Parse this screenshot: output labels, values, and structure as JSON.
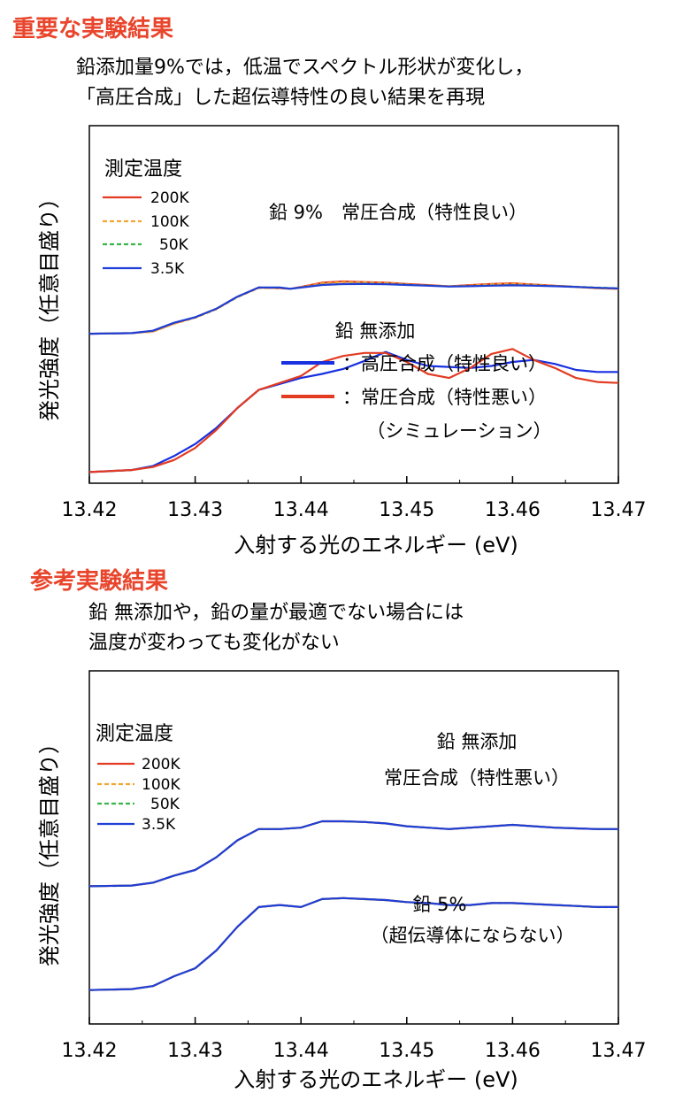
{
  "sections": [
    {
      "heading": "重要な実験結果",
      "caption_lines": [
        "鉛添加量9%では，低温でスペクトル形状が変化し，",
        "「高圧合成」した超伝導特性の良い結果を再現"
      ]
    },
    {
      "heading": "参考実験結果",
      "caption_lines": [
        "鉛 無添加や，鉛の量が最適でない場合には",
        "温度が変わっても変化がない"
      ]
    }
  ],
  "colors": {
    "200K": "#e23b22",
    "100K": "#f2a531",
    "50K": "#3bb44a",
    "3.5K": "#1f3fd6",
    "high_pressure": "#1730e0",
    "ambient_pressure": "#e23b22",
    "heading": "#e8452c"
  },
  "chart_data": [
    {
      "type": "line",
      "xlabel": "入射する光のエネルギー (eV)",
      "ylabel": "発光強度（任意目盛り）",
      "xlim": [
        13.42,
        13.47
      ],
      "ylim": [
        0,
        1
      ],
      "xticks": [
        "13.42",
        "13.43",
        "13.44",
        "13.45",
        "13.46",
        "13.47"
      ],
      "legend": {
        "title": "測定温度",
        "position": "top-left",
        "entries": [
          "200K",
          "100K",
          "50K",
          "3.5K"
        ]
      },
      "annotations": [
        {
          "text": "鉛 9%　常圧合成（特性良い）",
          "target": "upper-curves"
        },
        {
          "text": "鉛 無添加",
          "target": "lower-curves"
        },
        {
          "text": "：高圧合成（特性良い）",
          "swatch": "high_pressure"
        },
        {
          "text": "：常圧合成（特性悪い）",
          "swatch": "ambient_pressure"
        },
        {
          "text": "（シミュレーション）",
          "target": "lower-curves"
        }
      ],
      "series": [
        {
          "name": "200K",
          "group": "鉛 9% 常圧合成",
          "style": "solid",
          "color": "200K",
          "x": [
            13.42,
            13.424,
            13.426,
            13.428,
            13.43,
            13.432,
            13.434,
            13.436,
            13.438,
            13.439,
            13.44,
            13.442,
            13.444,
            13.446,
            13.448,
            13.45,
            13.452,
            13.454,
            13.456,
            13.458,
            13.46,
            13.462,
            13.464,
            13.466,
            13.468,
            13.47
          ],
          "y": [
            0.465,
            0.47,
            0.485,
            0.55,
            0.6,
            0.67,
            0.77,
            0.845,
            0.84,
            0.835,
            0.85,
            0.885,
            0.895,
            0.89,
            0.885,
            0.875,
            0.865,
            0.855,
            0.865,
            0.875,
            0.88,
            0.87,
            0.86,
            0.85,
            0.84,
            0.835
          ]
        },
        {
          "name": "100K",
          "group": "鉛 9% 常圧合成",
          "style": "dashed",
          "color": "100K",
          "x": [
            13.42,
            13.424,
            13.426,
            13.428,
            13.43,
            13.432,
            13.434,
            13.436,
            13.438,
            13.439,
            13.44,
            13.442,
            13.444,
            13.446,
            13.448,
            13.45,
            13.452,
            13.454,
            13.456,
            13.458,
            13.46,
            13.462,
            13.464,
            13.466,
            13.468,
            13.47
          ],
          "y": [
            0.465,
            0.47,
            0.48,
            0.545,
            0.595,
            0.665,
            0.765,
            0.84,
            0.84,
            0.835,
            0.848,
            0.88,
            0.89,
            0.888,
            0.882,
            0.872,
            0.862,
            0.855,
            0.862,
            0.872,
            0.876,
            0.868,
            0.858,
            0.848,
            0.838,
            0.833
          ]
        },
        {
          "name": "50K",
          "group": "鉛 9% 常圧合成",
          "style": "dashed",
          "color": "50K",
          "x": [
            13.42,
            13.424,
            13.426,
            13.428,
            13.43,
            13.432,
            13.434,
            13.436,
            13.438,
            13.439,
            13.44,
            13.442,
            13.444,
            13.446,
            13.448,
            13.45,
            13.452,
            13.454,
            13.456,
            13.458,
            13.46,
            13.462,
            13.464,
            13.466,
            13.468,
            13.47
          ],
          "y": [
            0.465,
            0.47,
            0.49,
            0.555,
            0.6,
            0.67,
            0.77,
            0.845,
            0.845,
            0.835,
            0.845,
            0.868,
            0.875,
            0.876,
            0.874,
            0.868,
            0.862,
            0.855,
            0.858,
            0.862,
            0.865,
            0.862,
            0.858,
            0.852,
            0.845,
            0.84
          ]
        },
        {
          "name": "3.5K",
          "group": "鉛 9% 常圧合成",
          "style": "solid",
          "color": "3.5K",
          "x": [
            13.42,
            13.424,
            13.426,
            13.428,
            13.43,
            13.432,
            13.434,
            13.436,
            13.438,
            13.439,
            13.44,
            13.442,
            13.444,
            13.446,
            13.448,
            13.45,
            13.452,
            13.454,
            13.456,
            13.458,
            13.46,
            13.462,
            13.464,
            13.466,
            13.468,
            13.47
          ],
          "y": [
            0.465,
            0.47,
            0.49,
            0.555,
            0.6,
            0.67,
            0.77,
            0.845,
            0.845,
            0.835,
            0.845,
            0.866,
            0.873,
            0.874,
            0.872,
            0.866,
            0.86,
            0.853,
            0.856,
            0.86,
            0.863,
            0.86,
            0.856,
            0.85,
            0.843,
            0.838
          ]
        },
        {
          "name": "高圧合成（特性良い）",
          "group": "鉛 無添加",
          "style": "solid",
          "color": "high_pressure",
          "x": [
            13.42,
            13.424,
            13.426,
            13.428,
            13.43,
            13.432,
            13.434,
            13.436,
            13.438,
            13.44,
            13.442,
            13.444,
            13.446,
            13.448,
            13.45,
            13.452,
            13.454,
            13.456,
            13.458,
            13.46,
            13.462,
            13.464,
            13.466,
            13.468,
            13.47
          ],
          "y": [
            0.02,
            0.03,
            0.05,
            0.1,
            0.16,
            0.24,
            0.34,
            0.43,
            0.46,
            0.49,
            0.51,
            0.535,
            0.575,
            0.62,
            0.58,
            0.55,
            0.545,
            0.54,
            0.55,
            0.57,
            0.58,
            0.56,
            0.53,
            0.52,
            0.52
          ]
        },
        {
          "name": "常圧合成（特性悪い）",
          "group": "鉛 無添加",
          "style": "solid",
          "color": "ambient_pressure",
          "x": [
            13.42,
            13.424,
            13.426,
            13.428,
            13.43,
            13.432,
            13.434,
            13.436,
            13.438,
            13.44,
            13.442,
            13.444,
            13.446,
            13.448,
            13.45,
            13.452,
            13.454,
            13.456,
            13.458,
            13.46,
            13.462,
            13.464,
            13.466,
            13.468,
            13.47
          ],
          "y": [
            0.02,
            0.03,
            0.045,
            0.08,
            0.14,
            0.23,
            0.34,
            0.43,
            0.465,
            0.5,
            0.57,
            0.6,
            0.615,
            0.615,
            0.57,
            0.51,
            0.49,
            0.54,
            0.61,
            0.635,
            0.58,
            0.54,
            0.49,
            0.47,
            0.465
          ]
        }
      ]
    },
    {
      "type": "line",
      "xlabel": "入射する光のエネルギー (eV)",
      "ylabel": "発光強度（任意目盛り）",
      "xlim": [
        13.42,
        13.47
      ],
      "ylim": [
        0,
        1
      ],
      "xticks": [
        "13.42",
        "13.43",
        "13.44",
        "13.45",
        "13.46",
        "13.47"
      ],
      "legend": {
        "title": "測定温度",
        "position": "top-left",
        "entries": [
          "200K",
          "100K",
          "50K",
          "3.5K"
        ]
      },
      "annotations": [
        {
          "text": "鉛 無添加",
          "target": "upper-curves"
        },
        {
          "text": "常圧合成（特性悪い）",
          "target": "upper-curves"
        },
        {
          "text": "鉛 5%",
          "target": "lower-curves"
        },
        {
          "text": "（超伝導体にならない）",
          "target": "lower-curves"
        }
      ],
      "series": [
        {
          "name": "200K",
          "group": "鉛 無添加 常圧合成",
          "style": "solid",
          "color": "200K",
          "x": [
            13.42,
            13.424,
            13.426,
            13.428,
            13.43,
            13.432,
            13.434,
            13.436,
            13.438,
            13.44,
            13.442,
            13.444,
            13.446,
            13.448,
            13.45,
            13.452,
            13.454,
            13.456,
            13.458,
            13.46,
            13.462,
            13.464,
            13.466,
            13.468,
            13.47
          ],
          "y": [
            0.475,
            0.48,
            0.5,
            0.55,
            0.59,
            0.68,
            0.8,
            0.88,
            0.88,
            0.89,
            0.935,
            0.935,
            0.93,
            0.92,
            0.9,
            0.89,
            0.88,
            0.89,
            0.9,
            0.91,
            0.9,
            0.89,
            0.885,
            0.88,
            0.88
          ]
        },
        {
          "name": "100K",
          "group": "鉛 無添加 常圧合成",
          "style": "dashed",
          "color": "100K",
          "x": [
            13.42,
            13.424,
            13.426,
            13.428,
            13.43,
            13.432,
            13.434,
            13.436,
            13.438,
            13.44,
            13.442,
            13.444,
            13.446,
            13.448,
            13.45,
            13.452,
            13.454,
            13.456,
            13.458,
            13.46,
            13.462,
            13.464,
            13.466,
            13.468,
            13.47
          ],
          "y": [
            0.475,
            0.48,
            0.5,
            0.55,
            0.59,
            0.68,
            0.8,
            0.88,
            0.88,
            0.89,
            0.934,
            0.934,
            0.929,
            0.919,
            0.899,
            0.889,
            0.879,
            0.889,
            0.899,
            0.909,
            0.899,
            0.889,
            0.884,
            0.879,
            0.879
          ]
        },
        {
          "name": "50K",
          "group": "鉛 無添加 常圧合成",
          "style": "dashed",
          "color": "50K",
          "x": [
            13.42,
            13.424,
            13.426,
            13.428,
            13.43,
            13.432,
            13.434,
            13.436,
            13.438,
            13.44,
            13.442,
            13.444,
            13.446,
            13.448,
            13.45,
            13.452,
            13.454,
            13.456,
            13.458,
            13.46,
            13.462,
            13.464,
            13.466,
            13.468,
            13.47
          ],
          "y": [
            0.475,
            0.48,
            0.5,
            0.55,
            0.59,
            0.68,
            0.8,
            0.88,
            0.88,
            0.89,
            0.935,
            0.935,
            0.93,
            0.92,
            0.9,
            0.89,
            0.88,
            0.89,
            0.9,
            0.91,
            0.9,
            0.89,
            0.885,
            0.88,
            0.88
          ]
        },
        {
          "name": "3.5K",
          "group": "鉛 無添加 常圧合成",
          "style": "solid",
          "color": "3.5K",
          "x": [
            13.42,
            13.424,
            13.426,
            13.428,
            13.43,
            13.432,
            13.434,
            13.436,
            13.438,
            13.44,
            13.442,
            13.444,
            13.446,
            13.448,
            13.45,
            13.452,
            13.454,
            13.456,
            13.458,
            13.46,
            13.462,
            13.464,
            13.466,
            13.468,
            13.47
          ],
          "y": [
            0.475,
            0.48,
            0.5,
            0.55,
            0.59,
            0.68,
            0.8,
            0.88,
            0.88,
            0.89,
            0.935,
            0.935,
            0.93,
            0.92,
            0.9,
            0.89,
            0.88,
            0.89,
            0.9,
            0.91,
            0.9,
            0.89,
            0.885,
            0.88,
            0.88
          ]
        },
        {
          "name": "200K",
          "group": "鉛 5%",
          "style": "solid",
          "color": "200K",
          "x": [
            13.42,
            13.424,
            13.426,
            13.428,
            13.43,
            13.432,
            13.434,
            13.436,
            13.438,
            13.44,
            13.442,
            13.444,
            13.446,
            13.448,
            13.45,
            13.452,
            13.454,
            13.456,
            13.458,
            13.46,
            13.462,
            13.464,
            13.466,
            13.468,
            13.47
          ],
          "y": [
            0.1,
            0.105,
            0.12,
            0.17,
            0.21,
            0.3,
            0.42,
            0.52,
            0.53,
            0.52,
            0.56,
            0.565,
            0.56,
            0.555,
            0.545,
            0.54,
            0.53,
            0.53,
            0.54,
            0.54,
            0.535,
            0.53,
            0.525,
            0.52,
            0.52
          ]
        },
        {
          "name": "100K",
          "group": "鉛 5%",
          "style": "dashed",
          "color": "100K",
          "x": [
            13.42,
            13.424,
            13.426,
            13.428,
            13.43,
            13.432,
            13.434,
            13.436,
            13.438,
            13.44,
            13.442,
            13.444,
            13.446,
            13.448,
            13.45,
            13.452,
            13.454,
            13.456,
            13.458,
            13.46,
            13.462,
            13.464,
            13.466,
            13.468,
            13.47
          ],
          "y": [
            0.1,
            0.105,
            0.12,
            0.17,
            0.21,
            0.3,
            0.42,
            0.52,
            0.53,
            0.52,
            0.559,
            0.564,
            0.559,
            0.554,
            0.544,
            0.539,
            0.529,
            0.529,
            0.539,
            0.539,
            0.534,
            0.529,
            0.524,
            0.519,
            0.519
          ]
        },
        {
          "name": "50K",
          "group": "鉛 5%",
          "style": "dashed",
          "color": "50K",
          "x": [
            13.42,
            13.424,
            13.426,
            13.428,
            13.43,
            13.432,
            13.434,
            13.436,
            13.438,
            13.44,
            13.442,
            13.444,
            13.446,
            13.448,
            13.45,
            13.452,
            13.454,
            13.456,
            13.458,
            13.46,
            13.462,
            13.464,
            13.466,
            13.468,
            13.47
          ],
          "y": [
            0.1,
            0.105,
            0.12,
            0.17,
            0.21,
            0.3,
            0.42,
            0.52,
            0.53,
            0.52,
            0.56,
            0.565,
            0.56,
            0.555,
            0.545,
            0.54,
            0.53,
            0.53,
            0.54,
            0.54,
            0.535,
            0.53,
            0.525,
            0.52,
            0.52
          ]
        },
        {
          "name": "3.5K",
          "group": "鉛 5%",
          "style": "solid",
          "color": "3.5K",
          "x": [
            13.42,
            13.424,
            13.426,
            13.428,
            13.43,
            13.432,
            13.434,
            13.436,
            13.438,
            13.44,
            13.442,
            13.444,
            13.446,
            13.448,
            13.45,
            13.452,
            13.454,
            13.456,
            13.458,
            13.46,
            13.462,
            13.464,
            13.466,
            13.468,
            13.47
          ],
          "y": [
            0.1,
            0.105,
            0.12,
            0.17,
            0.21,
            0.3,
            0.42,
            0.52,
            0.53,
            0.52,
            0.56,
            0.565,
            0.56,
            0.555,
            0.545,
            0.54,
            0.53,
            0.53,
            0.54,
            0.54,
            0.535,
            0.53,
            0.525,
            0.52,
            0.52
          ]
        }
      ]
    }
  ]
}
